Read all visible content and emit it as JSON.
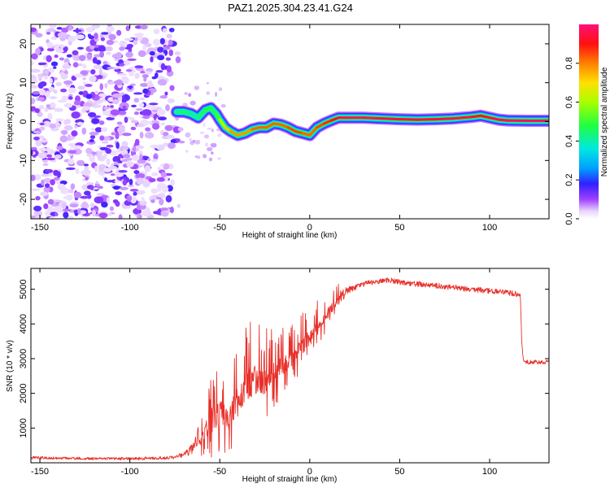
{
  "title": "PAZ1.2025.304.23.41.G24",
  "chart_data": [
    {
      "type": "heatmap",
      "xlabel": "Height of straight line (km)",
      "ylabel": "Frequency (Hz)",
      "xlim": [
        -155,
        133
      ],
      "ylim": [
        -25,
        25
      ],
      "xticks": [
        -150,
        -100,
        -50,
        0,
        50,
        100
      ],
      "yticks": [
        -20,
        -10,
        0,
        10,
        20
      ],
      "colorbar": {
        "label": "Normalized spectral amplitude",
        "range": [
          0,
          1
        ],
        "ticks": [
          0.0,
          0.2,
          0.4,
          0.6,
          0.8
        ],
        "tick_labels": [
          "0.0",
          "0.2",
          "0.4",
          "0.6",
          "0.8"
        ]
      },
      "noise_region_x": [
        -155,
        -72
      ],
      "ridge": {
        "x": [
          -74,
          -70,
          -66,
          -62,
          -58,
          -55,
          -52,
          -50,
          -47,
          -44,
          -40,
          -36,
          -32,
          -28,
          -24,
          -20,
          -16,
          -12,
          -8,
          -4,
          0,
          4,
          8,
          12,
          16,
          20,
          30,
          40,
          50,
          60,
          70,
          80,
          85,
          90,
          95,
          100,
          105,
          110,
          120,
          133
        ],
        "y": [
          2.5,
          2.5,
          2.0,
          1.0,
          3.0,
          3.5,
          2.0,
          0.5,
          -1.5,
          -2.5,
          -3.5,
          -3.0,
          -2.0,
          -1.5,
          -1.5,
          -0.5,
          -0.8,
          -1.5,
          -2.5,
          -3.0,
          -3.5,
          -1.5,
          -0.5,
          0.3,
          1.0,
          1.0,
          1.0,
          0.8,
          0.6,
          0.5,
          0.6,
          0.8,
          1.0,
          1.2,
          1.5,
          1.0,
          0.5,
          0.3,
          0.2,
          0.2
        ],
        "amplitude": [
          0.35,
          0.45,
          0.4,
          0.35,
          0.5,
          0.45,
          0.45,
          0.55,
          0.7,
          0.75,
          0.8,
          0.75,
          0.8,
          0.85,
          0.8,
          0.85,
          0.8,
          0.85,
          0.85,
          0.85,
          0.8,
          0.85,
          0.85,
          0.9,
          0.95,
          0.98,
          0.98,
          0.95,
          0.95,
          0.95,
          0.95,
          0.96,
          0.98,
          0.95,
          0.9,
          0.95,
          0.97,
          0.98,
          0.98,
          0.98
        ]
      }
    },
    {
      "type": "line",
      "xlabel": "Height of straight line (km)",
      "ylabel": "SNR (10 * v/v)",
      "xlim": [
        -155,
        133
      ],
      "ylim": [
        0,
        5600
      ],
      "xticks": [
        -150,
        -100,
        -50,
        0,
        50,
        100
      ],
      "yticks": [
        1000,
        2000,
        3000,
        4000,
        5000
      ],
      "color": "#e8302a",
      "series": [
        {
          "name": "SNR",
          "x": [
            -155,
            -140,
            -120,
            -100,
            -85,
            -75,
            -70,
            -65,
            -60,
            -55,
            -50,
            -45,
            -40,
            -35,
            -30,
            -25,
            -20,
            -15,
            -10,
            -5,
            0,
            5,
            10,
            15,
            20,
            25,
            30,
            35,
            40,
            45,
            50,
            60,
            70,
            80,
            90,
            100,
            110,
            117,
            118,
            119,
            125,
            133
          ],
          "y": [
            150,
            130,
            120,
            120,
            130,
            150,
            250,
            400,
            700,
            1200,
            1500,
            1200,
            1900,
            2200,
            2400,
            2300,
            2600,
            2800,
            3000,
            3300,
            3600,
            3900,
            4300,
            4650,
            4900,
            5050,
            5150,
            5200,
            5250,
            5250,
            5200,
            5150,
            5100,
            5050,
            5000,
            4950,
            4900,
            4850,
            3300,
            2900,
            2900,
            2900
          ],
          "noise": [
            40,
            40,
            40,
            40,
            40,
            50,
            80,
            150,
            400,
            800,
            900,
            700,
            900,
            1000,
            900,
            800,
            700,
            600,
            500,
            500,
            500,
            400,
            350,
            250,
            150,
            100,
            80,
            80,
            80,
            80,
            80,
            80,
            80,
            80,
            80,
            80,
            80,
            80,
            80,
            60,
            60,
            60
          ]
        }
      ]
    }
  ]
}
